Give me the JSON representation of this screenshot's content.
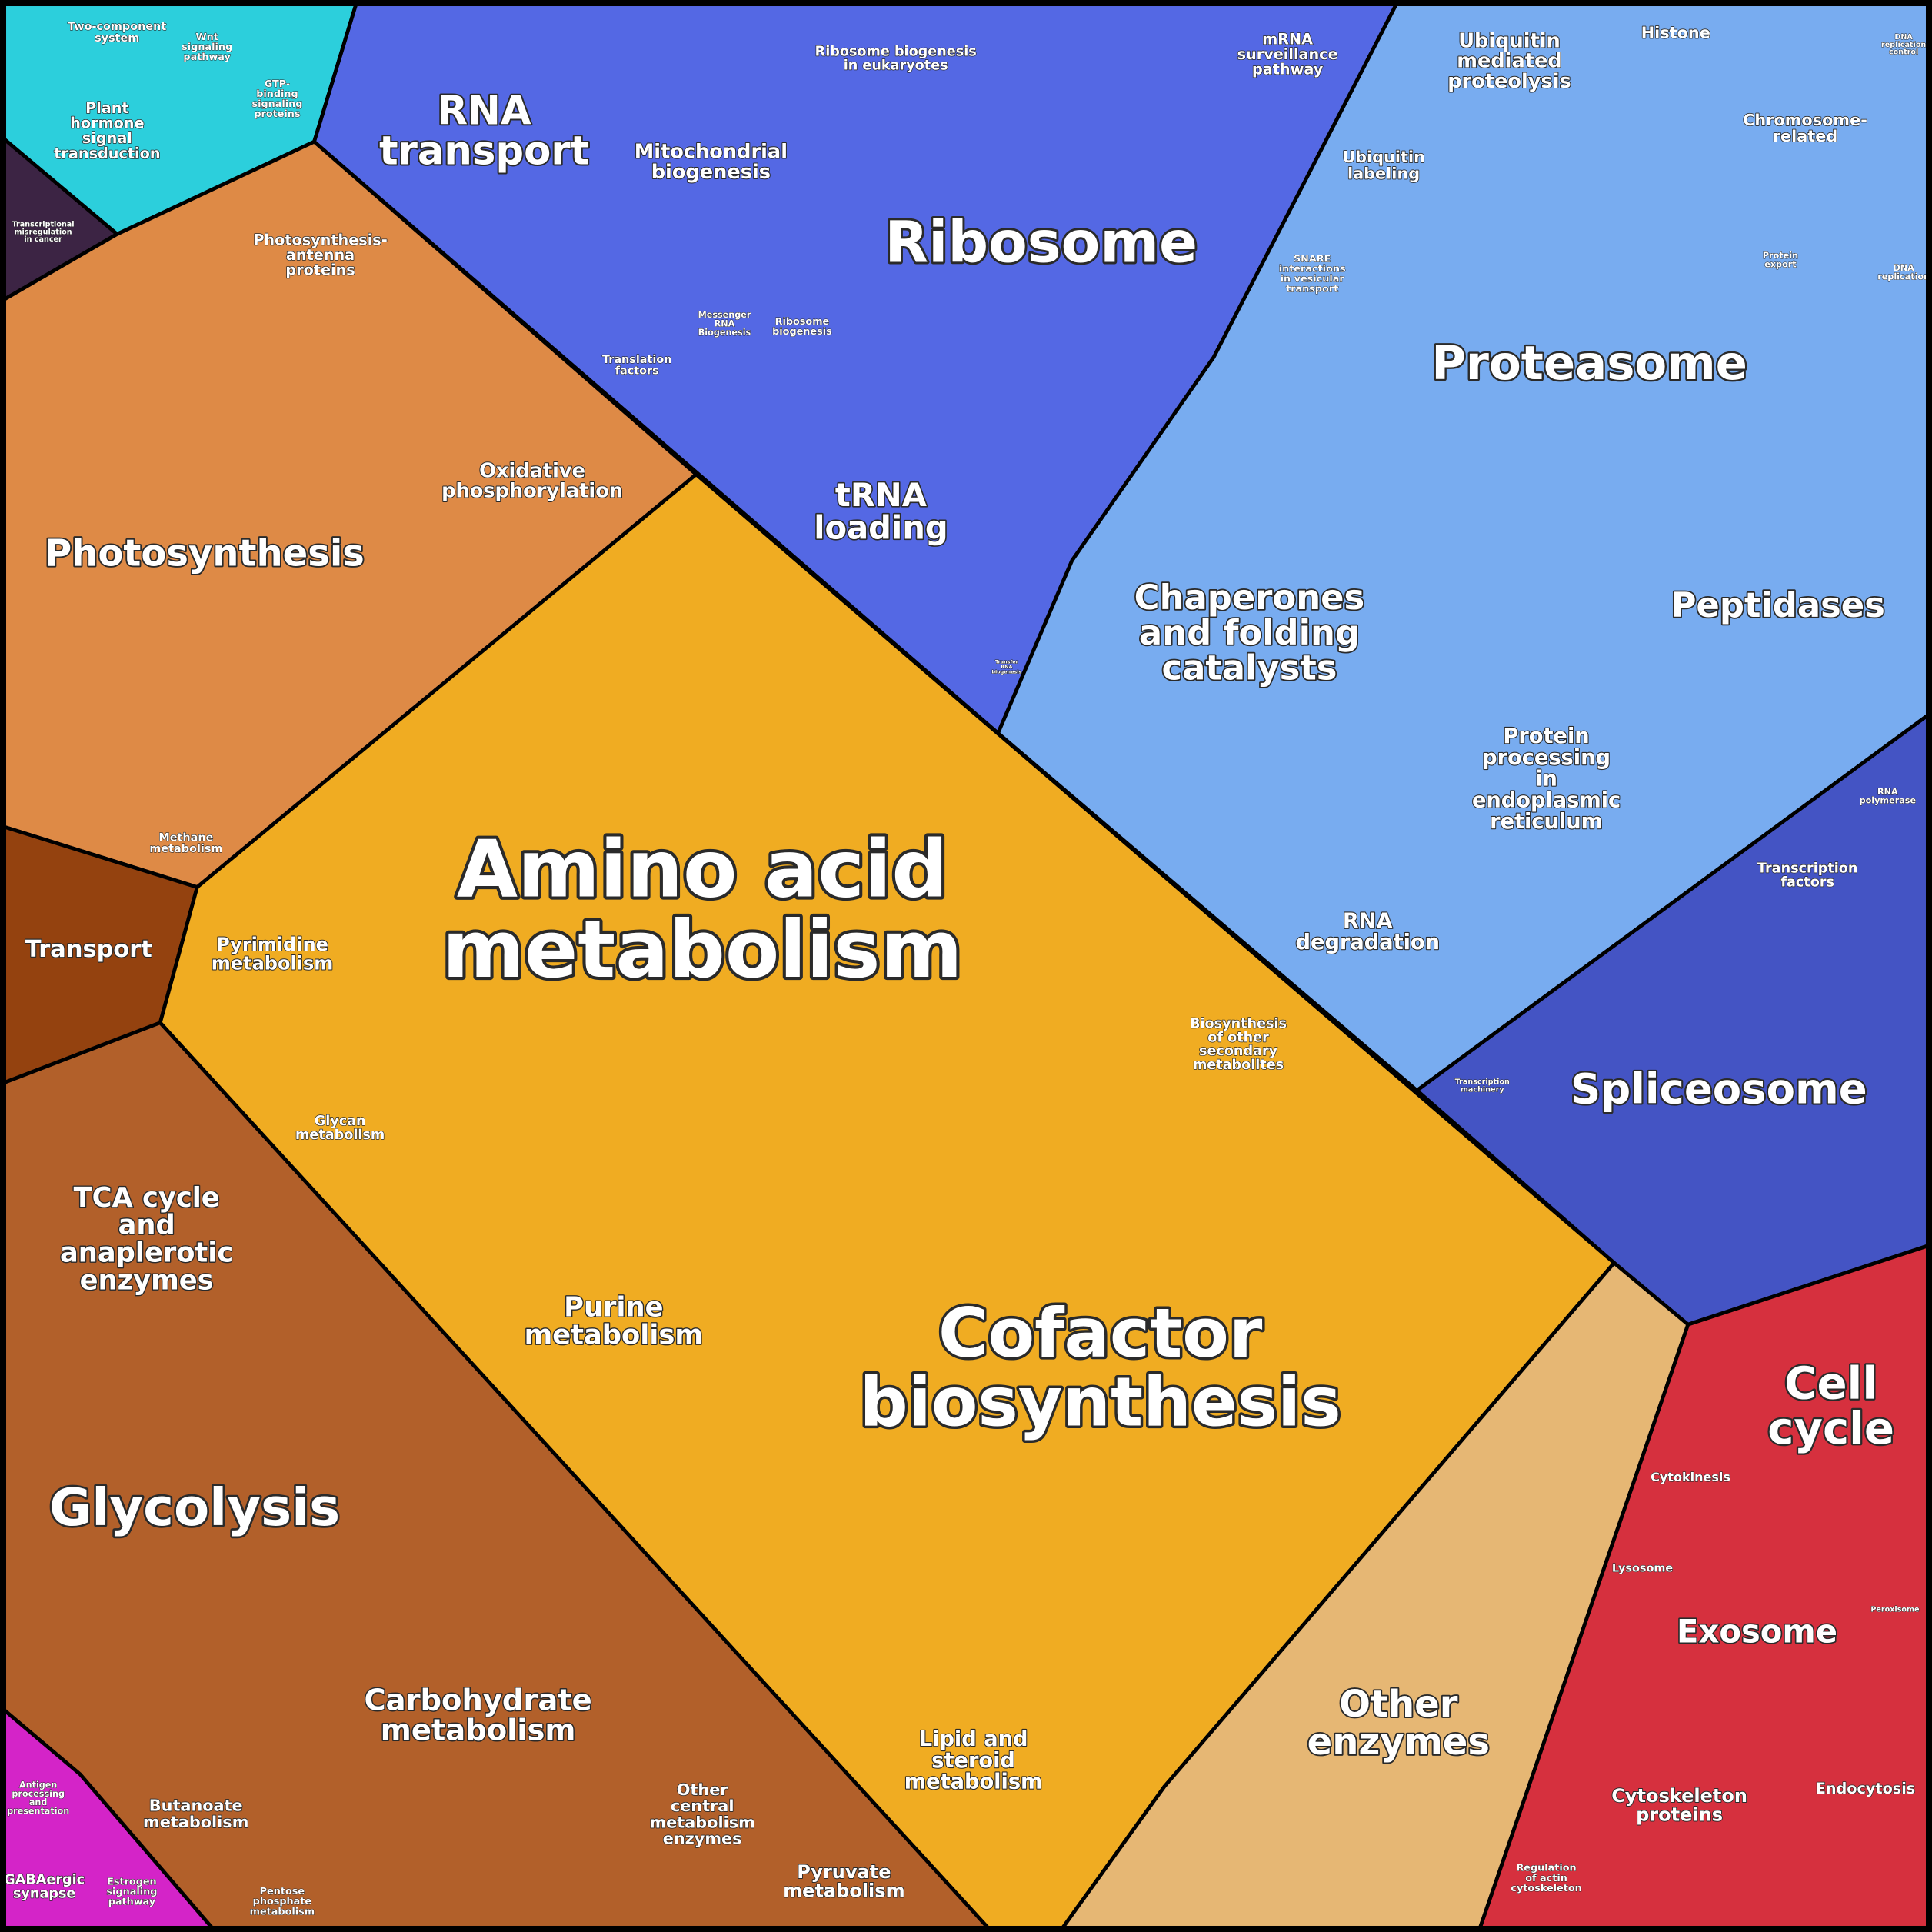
{
  "labels": [
    [
      "Two-component",
      "system"
    ],
    [
      "Wnt",
      "signaling",
      "pathway"
    ],
    [
      "Plant",
      "hormone",
      "signal",
      "transduction"
    ],
    [
      "GTP-",
      "binding",
      "signaling",
      "proteins"
    ],
    [
      "Transcriptional",
      "misregulation",
      "in cancer"
    ],
    [
      "RNA",
      "transport"
    ],
    [
      "Mitochondrial",
      "biogenesis"
    ],
    [
      "Ribosome biogenesis",
      "in eukaryotes"
    ],
    [
      "mRNA",
      "surveillance",
      "pathway"
    ],
    [
      "Ribosome"
    ],
    [
      "Messenger",
      "RNA",
      "Biogenesis"
    ],
    [
      "Ribosome",
      "biogenesis"
    ],
    [
      "Translation",
      "factors"
    ],
    [
      "tRNA",
      "loading"
    ],
    [
      "Transfer",
      "RNA",
      "biogenesis"
    ],
    [
      "Ubiquitin",
      "mediated",
      "proteolysis"
    ],
    [
      "Histone"
    ],
    [
      "DNA",
      "replication",
      "control"
    ],
    [
      "Chromosome-",
      "related"
    ],
    [
      "Ubiquitin",
      "labeling"
    ],
    [
      "SNARE",
      "interactions",
      "in vesicular",
      "transport"
    ],
    [
      "Protein",
      "export"
    ],
    [
      "DNA",
      "replication"
    ],
    [
      "Proteasome"
    ],
    [
      "Peptidases"
    ],
    [
      "Chaperones",
      "and folding",
      "catalysts"
    ],
    [
      "Protein",
      "processing",
      "in",
      "endoplasmic",
      "reticulum"
    ],
    [
      "RNA",
      "polymerase"
    ],
    [
      "Transcription",
      "factors"
    ],
    [
      "RNA",
      "degradation"
    ],
    [
      "Transcription",
      "machinery"
    ],
    [
      "Spliceosome"
    ],
    [
      "Photosynthesis-",
      "antenna",
      "proteins"
    ],
    [
      "Oxidative",
      "phosphorylation"
    ],
    [
      "Photosynthesis"
    ],
    [
      "Methane",
      "metabolism"
    ],
    [
      "Amino acid",
      "metabolism"
    ],
    [
      "Transport"
    ],
    [
      "Pyrimidine",
      "metabolism"
    ],
    [
      "Glycan",
      "metabolism"
    ],
    [
      "Biosynthesis",
      "of other",
      "secondary",
      "metabolites"
    ],
    [
      "TCA cycle",
      "and",
      "anaplerotic",
      "enzymes"
    ],
    [
      "Purine",
      "metabolism"
    ],
    [
      "Cofactor",
      "biosynthesis"
    ],
    [
      "Glycolysis"
    ],
    [
      "Cell",
      "cycle"
    ],
    [
      "Cytokinesis"
    ],
    [
      "Lysosome"
    ],
    [
      "Peroxisome"
    ],
    [
      "Exosome"
    ],
    [
      "Other",
      "enzymes"
    ],
    [
      "Carbohydrate",
      "metabolism"
    ],
    [
      "Lipid and",
      "steroid",
      "metabolism"
    ],
    [
      "Other",
      "central",
      "metabolism",
      "enzymes"
    ],
    [
      "Butanoate",
      "metabolism"
    ],
    [
      "Antigen",
      "processing",
      "and",
      "presentation"
    ],
    [
      "Cytoskeleton",
      "proteins"
    ],
    [
      "Endocytosis"
    ],
    [
      "GABAergic",
      "synapse"
    ],
    [
      "Estrogen",
      "signaling",
      "pathway"
    ],
    [
      "Pentose",
      "phosphate",
      "metabolism"
    ],
    [
      "Pyruvate",
      "metabolism"
    ],
    [
      "Regulation",
      "of actin",
      "cytoskeleton"
    ]
  ]
}
